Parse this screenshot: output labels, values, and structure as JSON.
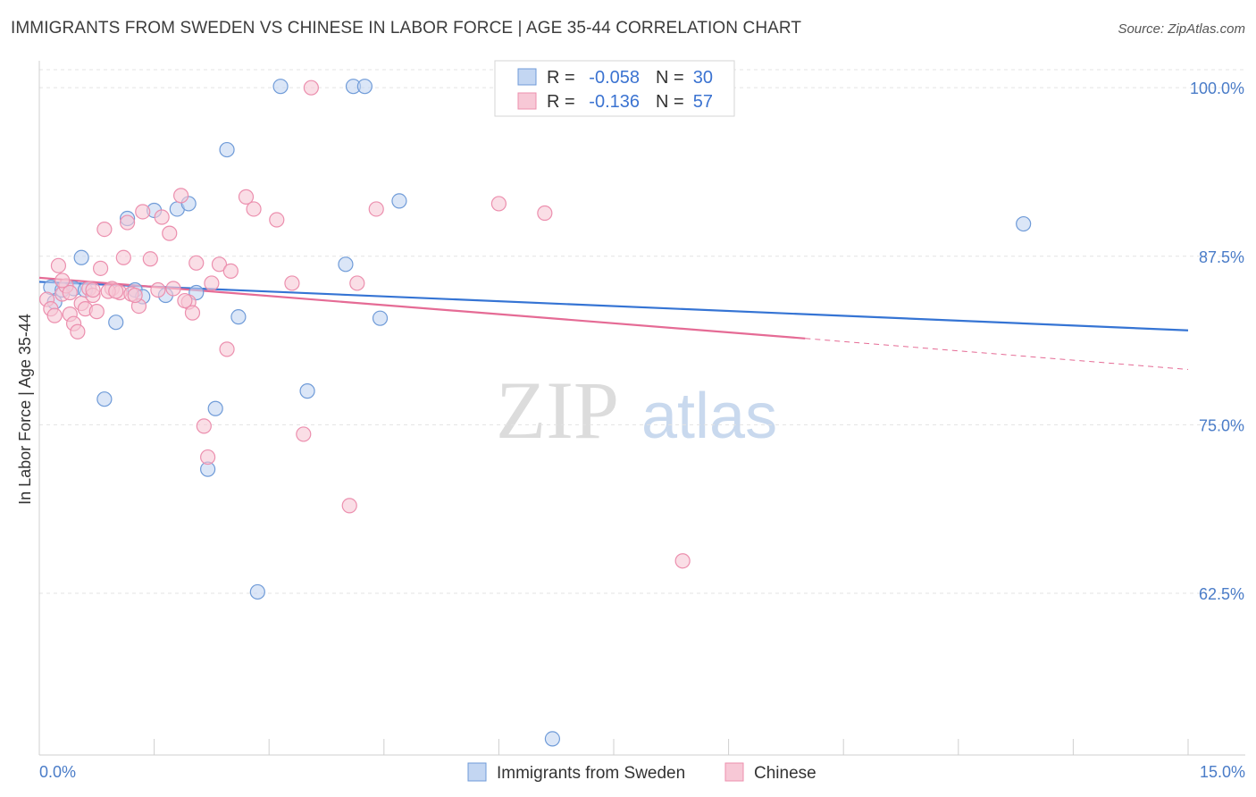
{
  "title": "IMMIGRANTS FROM SWEDEN VS CHINESE IN LABOR FORCE | AGE 35-44 CORRELATION CHART",
  "source": "Source: ZipAtlas.com",
  "watermark": {
    "zip": "ZIP",
    "atlas": "atlas"
  },
  "colors": {
    "blue_fill": "#c3d6f2",
    "blue_stroke": "#6f9bd8",
    "blue_line": "#3574d4",
    "pink_fill": "#f7c8d6",
    "pink_stroke": "#ec8fae",
    "pink_line": "#e56b95",
    "axis_text": "#4a7cc8",
    "grid": "#e3e3e3"
  },
  "legend": {
    "rows": [
      {
        "r_label": "R =",
        "r_value": "-0.058",
        "n_label": "N =",
        "n_value": "30"
      },
      {
        "r_label": "R =",
        "r_value": "-0.136",
        "n_label": "N =",
        "n_value": "57"
      }
    ]
  },
  "chart_data": {
    "type": "scatter",
    "title": "IMMIGRANTS FROM SWEDEN VS CHINESE IN LABOR FORCE | AGE 35-44 CORRELATION CHART",
    "ylabel": "In Labor Force | Age 35-44",
    "xlabel": "",
    "xlim": [
      0,
      15
    ],
    "ylim": [
      50.5,
      102
    ],
    "x_tick_labels": [
      "0.0%",
      "15.0%"
    ],
    "y_ticks": [
      100.0,
      87.5,
      75.0,
      62.5
    ],
    "y_tick_labels": [
      "100.0%",
      "87.5%",
      "75.0%",
      "62.5%"
    ],
    "series": [
      {
        "name": "Immigrants from Sweden",
        "color": "blue",
        "points": [
          [
            0.15,
            85.2
          ],
          [
            0.2,
            84.1
          ],
          [
            0.3,
            85.0
          ],
          [
            0.45,
            85.1
          ],
          [
            0.55,
            87.4
          ],
          [
            0.6,
            85.0
          ],
          [
            0.85,
            76.9
          ],
          [
            1.0,
            82.6
          ],
          [
            1.15,
            90.3
          ],
          [
            1.25,
            85.0
          ],
          [
            1.35,
            84.5
          ],
          [
            1.5,
            90.9
          ],
          [
            1.65,
            84.6
          ],
          [
            1.8,
            91.0
          ],
          [
            1.95,
            91.4
          ],
          [
            2.05,
            84.8
          ],
          [
            2.2,
            71.7
          ],
          [
            2.3,
            76.2
          ],
          [
            2.45,
            95.4
          ],
          [
            2.6,
            83.0
          ],
          [
            2.85,
            62.6
          ],
          [
            3.15,
            100.1
          ],
          [
            3.5,
            77.5
          ],
          [
            4.0,
            86.9
          ],
          [
            4.1,
            100.1
          ],
          [
            4.25,
            100.1
          ],
          [
            4.45,
            82.9
          ],
          [
            4.7,
            91.6
          ],
          [
            6.7,
            51.7
          ],
          [
            12.85,
            89.9
          ]
        ]
      },
      {
        "name": "Chinese",
        "color": "pink",
        "points": [
          [
            0.1,
            84.3
          ],
          [
            0.15,
            83.6
          ],
          [
            0.2,
            83.1
          ],
          [
            0.25,
            86.8
          ],
          [
            0.3,
            84.7
          ],
          [
            0.35,
            85.3
          ],
          [
            0.4,
            83.2
          ],
          [
            0.45,
            82.5
          ],
          [
            0.5,
            81.9
          ],
          [
            0.55,
            84.0
          ],
          [
            0.6,
            83.6
          ],
          [
            0.65,
            85.1
          ],
          [
            0.7,
            84.6
          ],
          [
            0.75,
            83.4
          ],
          [
            0.8,
            86.6
          ],
          [
            0.85,
            89.5
          ],
          [
            0.95,
            85.1
          ],
          [
            1.05,
            84.8
          ],
          [
            1.1,
            87.4
          ],
          [
            1.15,
            90.0
          ],
          [
            1.2,
            84.7
          ],
          [
            1.3,
            83.8
          ],
          [
            1.35,
            90.8
          ],
          [
            1.45,
            87.3
          ],
          [
            1.55,
            85.0
          ],
          [
            1.6,
            90.4
          ],
          [
            1.7,
            89.2
          ],
          [
            1.75,
            85.1
          ],
          [
            1.85,
            92.0
          ],
          [
            1.95,
            84.1
          ],
          [
            2.0,
            83.3
          ],
          [
            2.05,
            87.0
          ],
          [
            2.15,
            74.9
          ],
          [
            2.2,
            72.6
          ],
          [
            2.25,
            85.5
          ],
          [
            2.35,
            86.9
          ],
          [
            2.45,
            80.6
          ],
          [
            2.5,
            86.4
          ],
          [
            2.7,
            91.9
          ],
          [
            2.8,
            91.0
          ],
          [
            3.1,
            90.2
          ],
          [
            3.3,
            85.5
          ],
          [
            3.45,
            74.3
          ],
          [
            3.55,
            100.0
          ],
          [
            4.05,
            69.0
          ],
          [
            4.15,
            85.5
          ],
          [
            4.4,
            91.0
          ],
          [
            6.0,
            91.4
          ],
          [
            6.6,
            90.7
          ],
          [
            8.4,
            64.9
          ],
          [
            0.9,
            84.9
          ],
          [
            1.25,
            84.6
          ],
          [
            0.4,
            84.8
          ],
          [
            0.7,
            85.0
          ],
          [
            1.0,
            84.9
          ],
          [
            1.9,
            84.2
          ],
          [
            0.3,
            85.7
          ]
        ]
      }
    ],
    "trend_lines": [
      {
        "series": "Immigrants from Sweden",
        "x_start": 0,
        "y_start": 85.6,
        "x_end": 15,
        "y_end": 82.0,
        "dashed_from": null
      },
      {
        "series": "Chinese",
        "x_start": 0,
        "y_start": 85.9,
        "x_end": 10.0,
        "y_end": 81.4,
        "dashed_to": 15,
        "dashed_y_end": 79.1
      }
    ]
  },
  "bottom_legend": {
    "items": [
      "Immigrants from Sweden",
      "Chinese"
    ]
  }
}
